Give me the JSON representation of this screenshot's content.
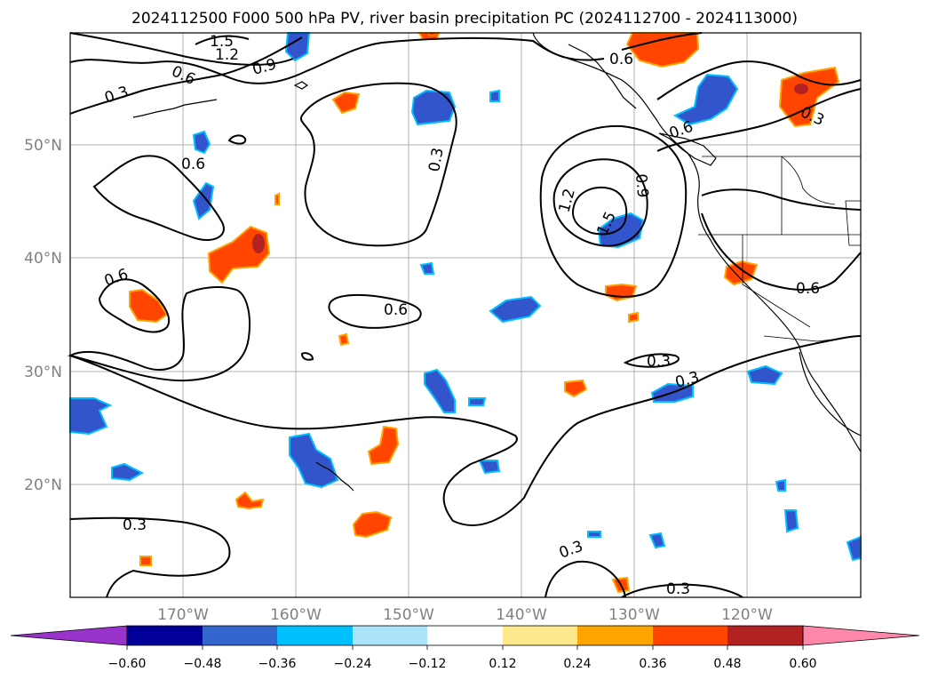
{
  "title": "2024112500 F000 500 hPa PV, river basin precipitation PC (2024112700 - 2024113000)",
  "map": {
    "lon_range": [
      -180,
      -110
    ],
    "lat_range": [
      10,
      60
    ],
    "gridlines": true,
    "lat_ticks": [
      "50°N",
      "40°N",
      "30°N",
      "20°N"
    ],
    "lon_ticks": [
      "170°W",
      "160°W",
      "150°W",
      "140°W",
      "130°W",
      "120°W"
    ]
  },
  "contour_labels": [
    "1.5",
    "1.2",
    "0.9",
    "0.6",
    "0.3",
    "0.6",
    "0.3",
    "0.6",
    "0.6",
    "0.6",
    "0.3",
    "0.6",
    "1.2",
    "1.5",
    "0.9",
    "0.6",
    "0.3",
    "0.3",
    "0.3",
    "0.3",
    "0.3",
    "0.6"
  ],
  "colorbar": {
    "extend": "both",
    "tick_labels": [
      "−0.60",
      "−0.48",
      "−0.36",
      "−0.24",
      "−0.12",
      "0.12",
      "0.24",
      "0.36",
      "0.48",
      "0.60"
    ],
    "colors": [
      "#9933cc",
      "#000099",
      "#3366cc",
      "#00bfff",
      "#aae3fa",
      "#ffffff",
      "#ffe98c",
      "#ffa500",
      "#ff4500",
      "#b22222",
      "#ff88aa"
    ]
  },
  "fill_colors": {
    "negative_core": "#3355cc",
    "negative_edge": "#00bfff",
    "positive_core": "#ff4500",
    "positive_edge": "#ffa500",
    "strong_positive": "#b22222"
  }
}
